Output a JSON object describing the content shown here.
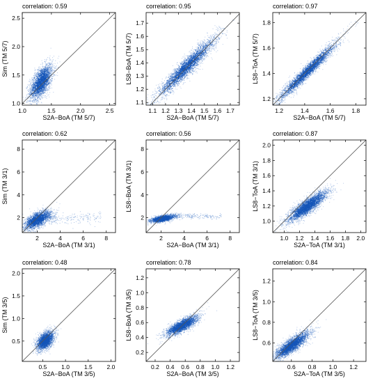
{
  "chart_data": [
    {
      "type": "scatter",
      "annotation": "correlation: 0.59",
      "xlabel": "S2A−BoA (TM 5/7)",
      "ylabel": "Sim (TM 5/7)",
      "xlim": [
        1.0,
        2.6
      ],
      "ylim": [
        0.97,
        2.6
      ],
      "xticks": [
        "1.0",
        "1.5",
        "2.0",
        "2.5"
      ],
      "xtick_values": [
        1.0,
        1.5,
        2.0,
        2.5
      ],
      "yticks": [
        "1.0",
        "1.5",
        "2.0",
        "2.5"
      ],
      "ytick_values": [
        1.0,
        1.5,
        2.0,
        2.5
      ],
      "identity_line": true,
      "cloud": {
        "cx": 1.32,
        "cy": 1.38,
        "sx": 0.1,
        "sy": 0.16,
        "r": 0.59,
        "n": 2200
      },
      "color": "#1455b8"
    },
    {
      "type": "scatter",
      "annotation": "correlation: 0.95",
      "xlabel": "S2A−BoA (TM 5/7)",
      "ylabel": "LS8−BoA (TM 5/7)",
      "xlim": [
        1.05,
        1.77
      ],
      "ylim": [
        1.08,
        1.78
      ],
      "xticks": [
        "1.1",
        "1.2",
        "1.3",
        "1.4",
        "1.5",
        "1.6",
        "1.7"
      ],
      "xtick_values": [
        1.1,
        1.2,
        1.3,
        1.4,
        1.5,
        1.6,
        1.7
      ],
      "yticks": [
        "1.1",
        "1.2",
        "1.3",
        "1.4",
        "1.5",
        "1.6",
        "1.7"
      ],
      "ytick_values": [
        1.1,
        1.2,
        1.3,
        1.4,
        1.5,
        1.6,
        1.7
      ],
      "identity_line": true,
      "cloud": {
        "cx": 1.36,
        "cy": 1.37,
        "sx": 0.12,
        "sy": 0.12,
        "r": 0.95,
        "n": 2600
      },
      "color": "#1455b8"
    },
    {
      "type": "scatter",
      "annotation": "correlation: 0.97",
      "xlabel": "S2A−BoA (TM 5/7)",
      "ylabel": "LS8−ToA (TM 5/7)",
      "xlim": [
        1.15,
        1.88
      ],
      "ylim": [
        1.15,
        1.88
      ],
      "xticks": [
        "1.2",
        "1.4",
        "1.6",
        "1.8"
      ],
      "xtick_values": [
        1.2,
        1.4,
        1.6,
        1.8
      ],
      "yticks": [
        "1.2",
        "1.4",
        "1.6",
        "1.8"
      ],
      "ytick_values": [
        1.2,
        1.4,
        1.6,
        1.8
      ],
      "identity_line": true,
      "cloud": {
        "cx": 1.42,
        "cy": 1.42,
        "sx": 0.12,
        "sy": 0.12,
        "r": 0.97,
        "n": 2600
      },
      "color": "#1455b8"
    },
    {
      "type": "scatter",
      "annotation": "correlation: 0.62",
      "xlabel": "S2A−BoA (TM 3/1)",
      "ylabel": "Sim (TM 3/1)",
      "xlim": [
        0.7,
        8.8
      ],
      "ylim": [
        0.7,
        8.8
      ],
      "xticks": [
        "2",
        "4",
        "6",
        "8"
      ],
      "xtick_values": [
        2,
        4,
        6,
        8
      ],
      "yticks": [
        "2",
        "4",
        "6",
        "8"
      ],
      "ytick_values": [
        2,
        4,
        6,
        8
      ],
      "identity_line": true,
      "cloud": {
        "cx": 2.0,
        "cy": 1.85,
        "sx": 0.6,
        "sy": 0.42,
        "r": 0.62,
        "n": 2000
      },
      "tail": {
        "x0": 3.0,
        "x1": 7.5,
        "cy": 2.0,
        "sy": 0.25,
        "n": 220
      },
      "color": "#1455b8"
    },
    {
      "type": "scatter",
      "annotation": "correlation: 0.56",
      "xlabel": "S2A−BoA (TM 3/1)",
      "ylabel": "LS8−BoA (TM 3/1)",
      "xlim": [
        0.7,
        8.8
      ],
      "ylim": [
        0.7,
        8.8
      ],
      "xticks": [
        "2",
        "4",
        "6",
        "8"
      ],
      "xtick_values": [
        2,
        4,
        6,
        8
      ],
      "yticks": [
        "2",
        "4",
        "6",
        "8"
      ],
      "ytick_values": [
        2,
        4,
        6,
        8
      ],
      "identity_line": true,
      "cloud": {
        "cx": 2.1,
        "cy": 1.95,
        "sx": 0.5,
        "sy": 0.16,
        "r": 0.56,
        "n": 2000
      },
      "tail": {
        "x0": 3.0,
        "x1": 7.2,
        "cy": 2.15,
        "sy": 0.12,
        "n": 220
      },
      "color": "#1455b8"
    },
    {
      "type": "scatter",
      "annotation": "correlation: 0.87",
      "xlabel": "S2A−ToA (TM 3/1)",
      "ylabel": "LS8−ToA (TM 3/1)",
      "xlim": [
        0.85,
        2.07
      ],
      "ylim": [
        0.85,
        2.07
      ],
      "xticks": [
        "1.0",
        "1.2",
        "1.4",
        "1.6",
        "1.8",
        "2.0"
      ],
      "xtick_values": [
        1.0,
        1.2,
        1.4,
        1.6,
        1.8,
        2.0
      ],
      "yticks": [
        "1.0",
        "1.2",
        "1.4",
        "1.6",
        "1.8",
        "2.0"
      ],
      "ytick_values": [
        1.0,
        1.2,
        1.4,
        1.6,
        1.8,
        2.0
      ],
      "identity_line": true,
      "cloud": {
        "cx": 1.3,
        "cy": 1.2,
        "sx": 0.14,
        "sy": 0.11,
        "r": 0.87,
        "n": 2600
      },
      "color": "#1455b8"
    },
    {
      "type": "scatter",
      "annotation": "correlation: 0.48",
      "xlabel": "S2A−BoA (TM 3/5)",
      "ylabel": "Sim (TM 3/5)",
      "xlim": [
        0.05,
        2.1
      ],
      "ylim": [
        0.05,
        2.1
      ],
      "xticks": [
        "0.5",
        "1.0",
        "1.5",
        "2.0"
      ],
      "xtick_values": [
        0.5,
        1.0,
        1.5,
        2.0
      ],
      "yticks": [
        "0.5",
        "1.0",
        "1.5",
        "2.0"
      ],
      "ytick_values": [
        0.5,
        1.0,
        1.5,
        2.0
      ],
      "identity_line": true,
      "cloud": {
        "cx": 0.55,
        "cy": 0.52,
        "sx": 0.1,
        "sy": 0.11,
        "r": 0.48,
        "n": 2000
      },
      "color": "#1455b8"
    },
    {
      "type": "scatter",
      "annotation": "correlation: 0.78",
      "xlabel": "S2A−BoA (TM 3/5)",
      "ylabel": "LS8−BoA (TM 3/5)",
      "xlim": [
        0.08,
        1.32
      ],
      "ylim": [
        0.08,
        1.32
      ],
      "xticks": [
        "0.2",
        "0.4",
        "0.6",
        "0.8",
        "1.0",
        "1.2"
      ],
      "xtick_values": [
        0.2,
        0.4,
        0.6,
        0.8,
        1.0,
        1.2
      ],
      "yticks": [
        "0.2",
        "0.4",
        "0.6",
        "0.8",
        "1.0",
        "1.2"
      ],
      "ytick_values": [
        0.2,
        0.4,
        0.6,
        0.8,
        1.0,
        1.2
      ],
      "identity_line": true,
      "cloud": {
        "cx": 0.55,
        "cy": 0.56,
        "sx": 0.11,
        "sy": 0.07,
        "r": 0.78,
        "n": 2200
      },
      "color": "#1455b8"
    },
    {
      "type": "scatter",
      "annotation": "correlation: 0.84",
      "xlabel": "S2A−ToA (TM 3/5)",
      "ylabel": "LS8−ToA (TM 3/5)",
      "xlim": [
        0.42,
        1.32
      ],
      "ylim": [
        0.42,
        1.32
      ],
      "xticks": [
        "0.6",
        "0.8",
        "1.0",
        "1.2"
      ],
      "xtick_values": [
        0.6,
        0.8,
        1.0,
        1.2
      ],
      "yticks": [
        "0.6",
        "0.8",
        "1.0",
        "1.2"
      ],
      "ytick_values": [
        0.6,
        0.8,
        1.0,
        1.2
      ],
      "identity_line": true,
      "cloud": {
        "cx": 0.6,
        "cy": 0.58,
        "sx": 0.09,
        "sy": 0.07,
        "r": 0.84,
        "n": 2400
      },
      "color": "#1455b8"
    }
  ]
}
